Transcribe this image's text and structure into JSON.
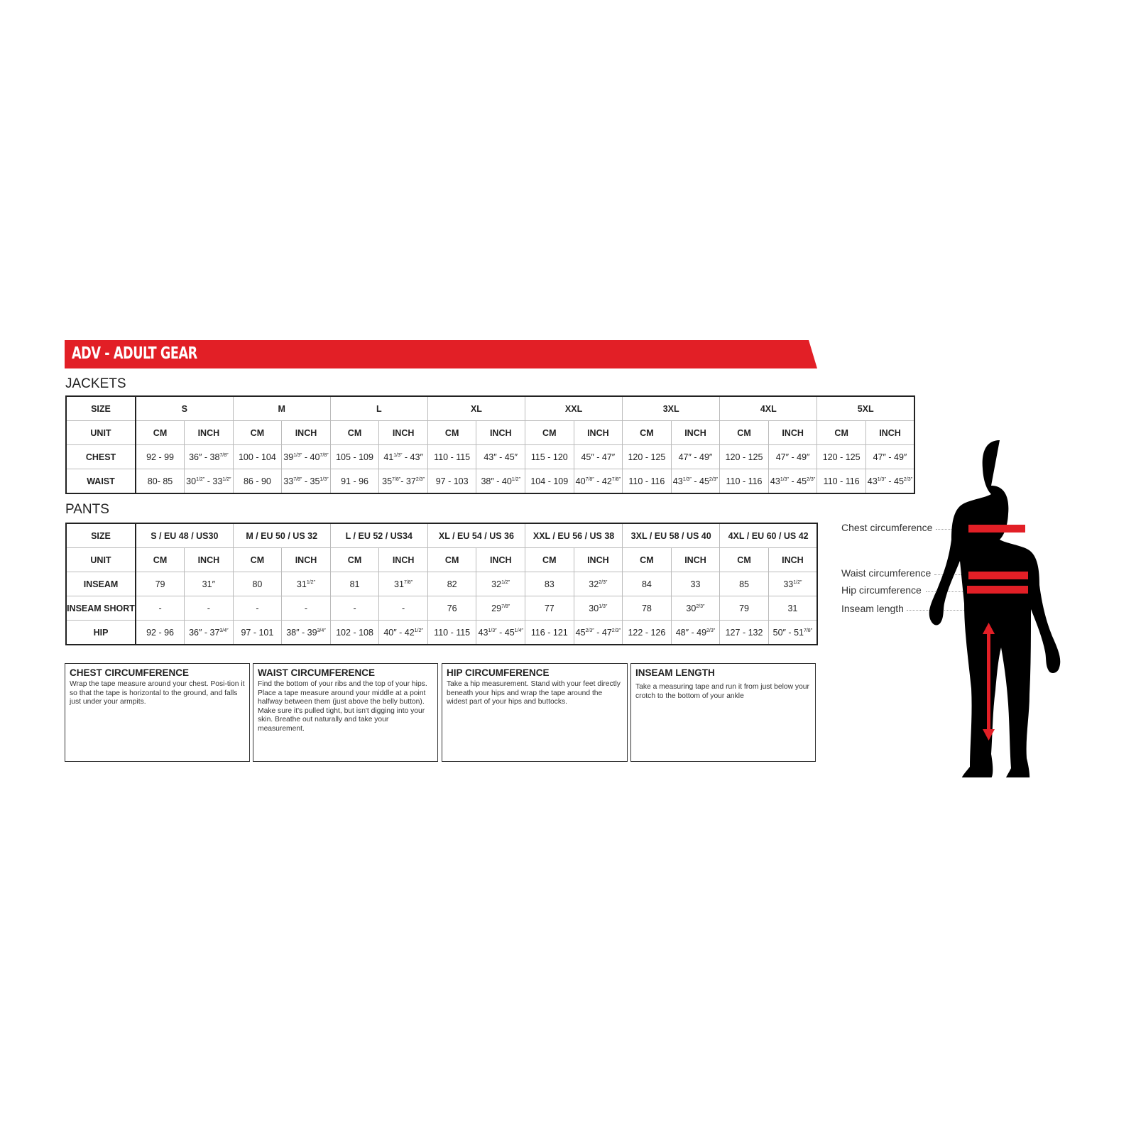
{
  "banner": {
    "title": "ADV - ADULT GEAR",
    "color": "#e21f26"
  },
  "jackets": {
    "heading": "JACKETS",
    "size_label": "SIZE",
    "unit_label": "UNIT",
    "sizes": [
      "S",
      "M",
      "L",
      "XL",
      "XXL",
      "3XL",
      "4XL",
      "5XL"
    ],
    "units": [
      "CM",
      "INCH"
    ],
    "rows": [
      {
        "label": "CHEST",
        "values": [
          "92 - 99",
          "36″ - 38 7/8″",
          "100 - 104",
          "39 1/3″ - 40 7/8″",
          "105 - 109",
          "41 1/3″ - 43″",
          "110 - 115",
          "43″ - 45″",
          "115 - 120",
          "45″ - 47″",
          "120 - 125",
          "47″ - 49″",
          "120 - 125",
          "47″ - 49″",
          "120 - 125",
          "47″ - 49″"
        ]
      },
      {
        "label": "WAIST",
        "values": [
          "80- 85",
          "30 1/2″ - 33 1/2″",
          "86 - 90",
          "33 7/8″ - 35 1/3″",
          "91 - 96",
          "35 7/8″- 37 2/3″",
          "97 - 103",
          "38″ - 40 1/2″",
          "104 - 109",
          "40 7/8″ - 42 7/8″",
          "110 - 116",
          "43 1/3″ - 45 2/3″",
          "110 - 116",
          "43 1/3″ - 45 2/3″",
          "110 - 116",
          "43 1/3″ - 45 2/3″"
        ]
      }
    ]
  },
  "pants": {
    "heading": "PANTS",
    "size_label": "SIZE",
    "unit_label": "UNIT",
    "sizes": [
      "S / EU 48 / US30",
      "M / EU 50 / US 32",
      "L / EU 52 / US34",
      "XL / EU 54 / US 36",
      "XXL / EU 56 / US 38",
      "3XL / EU 58 / US 40",
      "4XL / EU 60 / US 42"
    ],
    "units": [
      "CM",
      "INCH"
    ],
    "rows": [
      {
        "label": "INSEAM",
        "values": [
          "79",
          "31″",
          "80",
          "31 1/2″",
          "81",
          "31 7/8″",
          "82",
          "32 1/2″",
          "83",
          "32 2/3″",
          "84",
          "33",
          "85",
          "33 1/2″"
        ]
      },
      {
        "label": "INSEAM SHORT",
        "values": [
          "-",
          "-",
          "-",
          "-",
          "-",
          "-",
          "76",
          "29 7/8″",
          "77",
          "30 1/3″",
          "78",
          "30 2/3″",
          "79",
          "31"
        ]
      },
      {
        "label": "HIP",
        "values": [
          "92 - 96",
          "36″ - 37 3/4″",
          "97 - 101",
          "38″ - 39 3/4″",
          "102 - 108",
          "40″ - 42 1/2″",
          "110 - 115",
          "43 1/3″ - 45 1/4″",
          "116 - 121",
          "45 2/3″ - 47 2/3″",
          "122 - 126",
          "48″ - 49 2/3″",
          "127 - 132",
          "50″ - 51 7/8″"
        ]
      }
    ]
  },
  "guides": [
    {
      "title": "CHEST CIRCUMFERENCE",
      "text": "Wrap the tape measure around your chest. Posi-tion it so that the tape is horizontal to the ground, and falls just under your armpits."
    },
    {
      "title": "WAIST CIRCUMFERENCE",
      "text": "Find the bottom of your ribs and the top of your hips. Place a tape measure around your middle at a point halfway between them (just above the belly button). Make sure it's pulled tight, but isn't digging into your skin. Breathe out naturally and take your measurement."
    },
    {
      "title": "HIP CIRCUMFERENCE",
      "text": "Take a hip measurement. Stand with your feet directly beneath your hips and wrap the tape around the widest part of your hips and buttocks."
    },
    {
      "title": "INSEAM LENGTH",
      "text": "Take a measuring tape and run it from just below your crotch to the bottom of your ankle"
    }
  ],
  "figure": {
    "labels": [
      "Chest circumference",
      "Waist circumference",
      "Hip circumference",
      "Inseam length"
    ],
    "body_color": "#000000",
    "tape_color": "#e21f26"
  }
}
